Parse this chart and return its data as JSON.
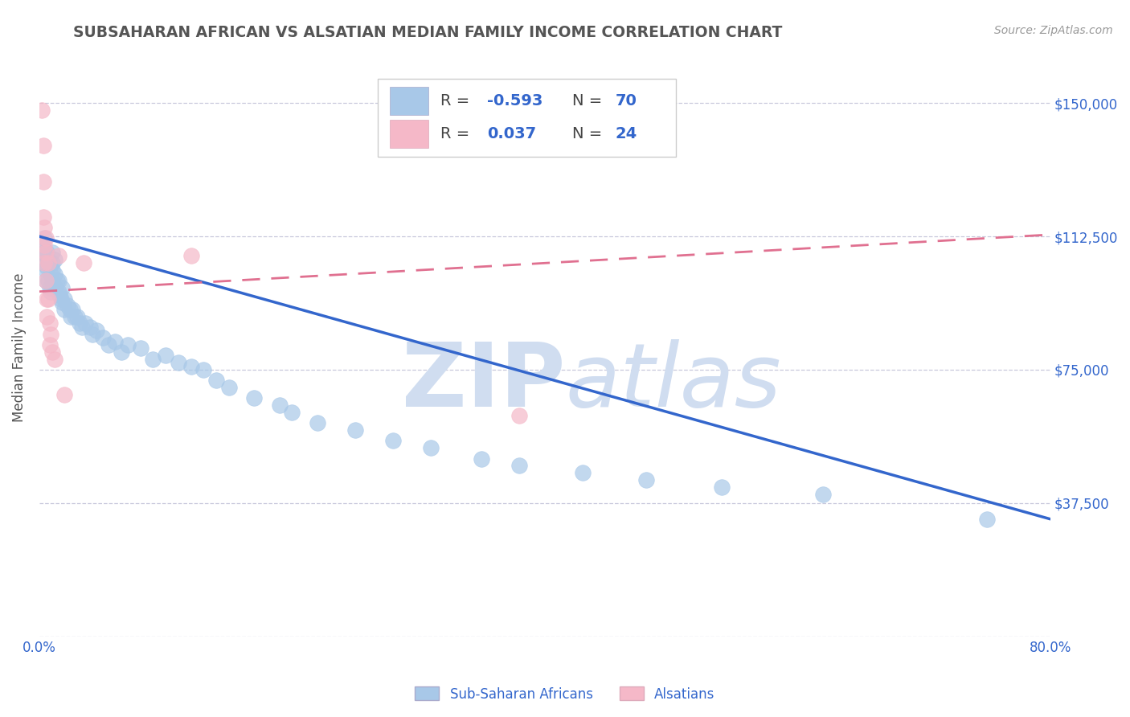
{
  "title": "SUBSAHARAN AFRICAN VS ALSATIAN MEDIAN FAMILY INCOME CORRELATION CHART",
  "source_text": "Source: ZipAtlas.com",
  "ylabel": "Median Family Income",
  "xlim": [
    0.0,
    0.8
  ],
  "ylim": [
    0,
    162500
  ],
  "yticks": [
    0,
    37500,
    75000,
    112500,
    150000
  ],
  "ytick_labels": [
    "",
    "$37,500",
    "$75,000",
    "$112,500",
    "$150,000"
  ],
  "blue_color": "#a8c8e8",
  "pink_color": "#f5b8c8",
  "trend_blue": "#3366cc",
  "trend_pink": "#e07090",
  "title_color": "#555555",
  "axis_label_color": "#3366cc",
  "tick_color": "#3366cc",
  "grid_color": "#c8c8dc",
  "background_color": "#ffffff",
  "watermark_color": "#d0ddf0",
  "blue_scatter_x": [
    0.002,
    0.003,
    0.004,
    0.004,
    0.005,
    0.005,
    0.005,
    0.006,
    0.006,
    0.007,
    0.007,
    0.008,
    0.008,
    0.009,
    0.009,
    0.01,
    0.01,
    0.01,
    0.01,
    0.012,
    0.012,
    0.013,
    0.014,
    0.015,
    0.015,
    0.016,
    0.017,
    0.018,
    0.018,
    0.02,
    0.02,
    0.022,
    0.024,
    0.025,
    0.026,
    0.028,
    0.03,
    0.032,
    0.034,
    0.036,
    0.04,
    0.042,
    0.045,
    0.05,
    0.055,
    0.06,
    0.065,
    0.07,
    0.08,
    0.09,
    0.1,
    0.11,
    0.12,
    0.13,
    0.14,
    0.15,
    0.17,
    0.19,
    0.2,
    0.22,
    0.25,
    0.28,
    0.31,
    0.35,
    0.38,
    0.43,
    0.48,
    0.54,
    0.62,
    0.75
  ],
  "blue_scatter_y": [
    110000,
    108000,
    112000,
    105000,
    107000,
    103000,
    100000,
    108000,
    104000,
    106000,
    100000,
    105000,
    98000,
    102000,
    97000,
    108000,
    105000,
    103000,
    100000,
    106000,
    102000,
    98000,
    100000,
    100000,
    97000,
    96000,
    95000,
    98000,
    94000,
    95000,
    92000,
    93000,
    92000,
    90000,
    92000,
    90000,
    90000,
    88000,
    87000,
    88000,
    87000,
    85000,
    86000,
    84000,
    82000,
    83000,
    80000,
    82000,
    81000,
    78000,
    79000,
    77000,
    76000,
    75000,
    72000,
    70000,
    67000,
    65000,
    63000,
    60000,
    58000,
    55000,
    53000,
    50000,
    48000,
    46000,
    44000,
    42000,
    40000,
    33000
  ],
  "pink_scatter_x": [
    0.002,
    0.003,
    0.003,
    0.003,
    0.004,
    0.004,
    0.004,
    0.005,
    0.005,
    0.005,
    0.006,
    0.006,
    0.007,
    0.007,
    0.008,
    0.008,
    0.009,
    0.01,
    0.012,
    0.015,
    0.02,
    0.035,
    0.12,
    0.38
  ],
  "pink_scatter_y": [
    148000,
    138000,
    128000,
    118000,
    115000,
    110000,
    105000,
    112000,
    108000,
    100000,
    95000,
    90000,
    105000,
    95000,
    88000,
    82000,
    85000,
    80000,
    78000,
    107000,
    68000,
    105000,
    107000,
    62000
  ],
  "blue_trend_x": [
    0.0,
    0.8
  ],
  "blue_trend_y": [
    112500,
    33000
  ],
  "pink_trend_x": [
    0.0,
    0.8
  ],
  "pink_trend_y": [
    97000,
    113000
  ]
}
